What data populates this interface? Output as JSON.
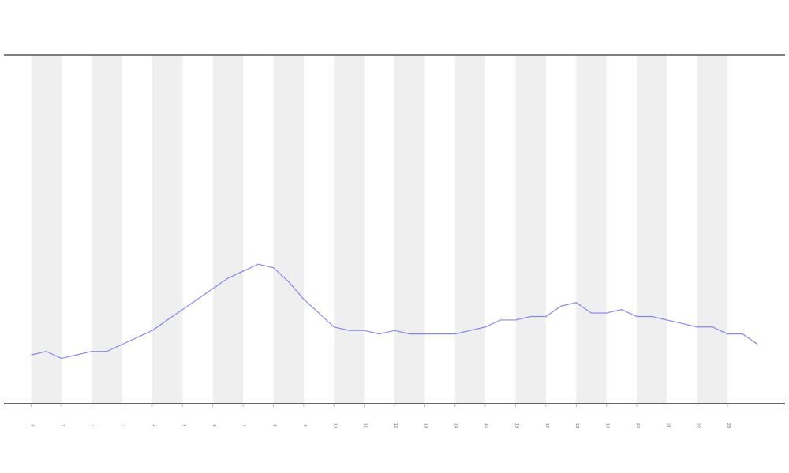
{
  "chart_data": {
    "type": "line",
    "x": [
      0,
      0.5,
      1,
      1.5,
      2,
      2.5,
      3,
      3.5,
      4,
      4.5,
      5,
      5.5,
      6,
      6.5,
      7,
      7.5,
      8,
      8.5,
      9,
      9.5,
      10,
      10.5,
      11,
      11.5,
      12,
      12.5,
      13,
      13.5,
      14,
      14.5,
      15,
      15.5,
      16,
      16.5,
      17,
      17.5,
      18,
      18.5,
      19,
      19.5,
      20,
      20.5,
      21,
      21.5,
      22,
      22.5,
      23,
      23.5,
      24
    ],
    "series": [
      {
        "color": "#6a6aee",
        "values": [
          14,
          15,
          13,
          14,
          15,
          15,
          17,
          19,
          21,
          24,
          27,
          30,
          33,
          36,
          38,
          40,
          39,
          35,
          30,
          26,
          22,
          21,
          21,
          20,
          21,
          20,
          20,
          20,
          20,
          21,
          22,
          24,
          24,
          25,
          25,
          28,
          29,
          26,
          26,
          27,
          25,
          25,
          24,
          23,
          22,
          22,
          20,
          20,
          17
        ]
      }
    ],
    "xlim": [
      -0.9,
      24.9
    ],
    "ylim": [
      0,
      100
    ],
    "xticks": [
      0,
      1,
      2,
      3,
      4,
      5,
      6,
      7,
      8,
      9,
      10,
      11,
      12,
      13,
      14,
      15,
      16,
      17,
      18,
      19,
      20,
      21,
      22,
      23
    ]
  }
}
